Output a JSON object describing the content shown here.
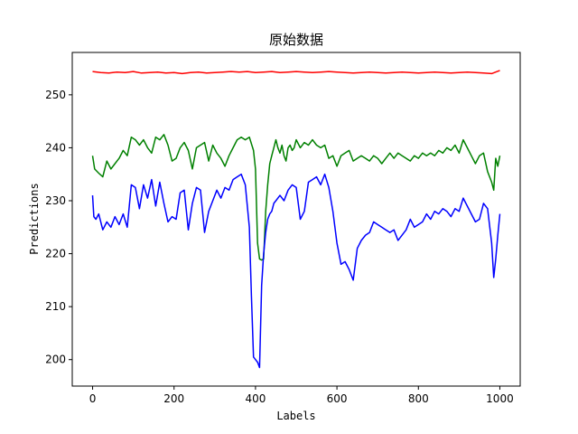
{
  "chart_data": {
    "type": "line",
    "title": "原始数据",
    "xlabel": "Labels",
    "ylabel": "Predictions",
    "xlim": [
      -50,
      1050
    ],
    "ylim": [
      195,
      258
    ],
    "x_ticks": [
      0,
      200,
      400,
      600,
      800,
      1000
    ],
    "y_ticks": [
      200,
      210,
      220,
      230,
      240,
      250
    ],
    "grid": false,
    "series": [
      {
        "color": "#ff0000",
        "x": [
          0,
          20,
          40,
          60,
          80,
          100,
          120,
          140,
          160,
          180,
          200,
          220,
          240,
          260,
          280,
          300,
          320,
          340,
          360,
          380,
          400,
          420,
          440,
          460,
          480,
          500,
          520,
          540,
          560,
          580,
          600,
          620,
          640,
          660,
          680,
          700,
          720,
          740,
          760,
          780,
          800,
          820,
          840,
          860,
          880,
          900,
          920,
          940,
          960,
          980,
          990,
          1000
        ],
        "values": [
          254.4,
          254.2,
          254.1,
          254.3,
          254.2,
          254.4,
          254.1,
          254.2,
          254.3,
          254.1,
          254.2,
          254.0,
          254.2,
          254.3,
          254.1,
          254.2,
          254.3,
          254.4,
          254.3,
          254.4,
          254.2,
          254.3,
          254.4,
          254.2,
          254.3,
          254.4,
          254.3,
          254.2,
          254.3,
          254.4,
          254.3,
          254.2,
          254.1,
          254.2,
          254.3,
          254.2,
          254.1,
          254.2,
          254.3,
          254.2,
          254.1,
          254.2,
          254.3,
          254.2,
          254.1,
          254.2,
          254.3,
          254.2,
          254.1,
          254.0,
          254.3,
          254.6
        ]
      },
      {
        "color": "#008000",
        "x": [
          0,
          5,
          15,
          25,
          35,
          45,
          55,
          65,
          75,
          85,
          95,
          105,
          115,
          125,
          135,
          145,
          155,
          165,
          175,
          185,
          195,
          205,
          215,
          225,
          235,
          245,
          255,
          265,
          275,
          285,
          295,
          305,
          315,
          325,
          335,
          345,
          355,
          365,
          375,
          385,
          395,
          400,
          405,
          410,
          415,
          420,
          425,
          430,
          435,
          440,
          445,
          450,
          455,
          460,
          465,
          470,
          475,
          480,
          485,
          490,
          495,
          500,
          510,
          520,
          530,
          540,
          550,
          560,
          570,
          580,
          590,
          600,
          610,
          620,
          630,
          640,
          650,
          660,
          670,
          680,
          690,
          700,
          710,
          720,
          730,
          740,
          750,
          760,
          770,
          780,
          790,
          800,
          810,
          820,
          830,
          840,
          850,
          860,
          870,
          880,
          890,
          900,
          910,
          920,
          930,
          940,
          950,
          960,
          970,
          980,
          985,
          990,
          995,
          1000
        ],
        "values": [
          238.5,
          236.0,
          235.2,
          234.5,
          237.5,
          236.0,
          237.0,
          238.0,
          239.5,
          238.5,
          242.0,
          241.5,
          240.5,
          241.5,
          240.0,
          239.0,
          242.0,
          241.5,
          242.5,
          240.5,
          237.5,
          238.0,
          240.0,
          241.0,
          239.5,
          236.0,
          240.0,
          240.5,
          241.0,
          237.5,
          240.5,
          239.0,
          238.0,
          236.5,
          238.5,
          240.0,
          241.5,
          242.0,
          241.5,
          242.0,
          239.5,
          236.0,
          222.0,
          219.0,
          218.8,
          219.0,
          228.0,
          233.0,
          237.0,
          238.5,
          240.0,
          241.5,
          240.0,
          239.0,
          240.5,
          238.5,
          237.5,
          240.0,
          240.5,
          239.5,
          240.0,
          241.5,
          240.0,
          241.0,
          240.5,
          241.5,
          240.5,
          240.0,
          240.5,
          238.0,
          238.5,
          236.5,
          238.5,
          239.0,
          239.5,
          237.5,
          238.0,
          238.5,
          238.0,
          237.5,
          238.5,
          238.0,
          237.0,
          238.0,
          239.0,
          238.0,
          239.0,
          238.5,
          238.0,
          237.5,
          238.5,
          238.0,
          239.0,
          238.5,
          239.0,
          238.5,
          239.5,
          239.0,
          240.0,
          239.5,
          240.5,
          239.0,
          241.5,
          240.0,
          238.5,
          237.0,
          238.5,
          239.0,
          235.5,
          233.5,
          232.0,
          238.0,
          236.5,
          238.5
        ]
      },
      {
        "color": "#0000ff",
        "x": [
          0,
          3,
          8,
          15,
          25,
          35,
          45,
          55,
          65,
          75,
          85,
          95,
          105,
          115,
          125,
          135,
          145,
          155,
          165,
          175,
          185,
          195,
          205,
          215,
          225,
          235,
          245,
          255,
          265,
          275,
          285,
          295,
          305,
          315,
          325,
          335,
          345,
          355,
          365,
          375,
          385,
          390,
          395,
          400,
          405,
          410,
          415,
          420,
          425,
          430,
          435,
          440,
          445,
          450,
          460,
          470,
          480,
          490,
          500,
          510,
          520,
          530,
          540,
          550,
          560,
          570,
          580,
          590,
          600,
          610,
          620,
          630,
          640,
          650,
          660,
          670,
          680,
          690,
          700,
          710,
          720,
          730,
          740,
          750,
          760,
          770,
          780,
          790,
          800,
          810,
          820,
          830,
          840,
          850,
          860,
          870,
          880,
          890,
          900,
          910,
          920,
          930,
          940,
          950,
          960,
          970,
          980,
          985,
          990,
          995,
          1000
        ],
        "values": [
          231.0,
          227.0,
          226.5,
          227.5,
          224.5,
          226.0,
          225.0,
          227.0,
          225.5,
          227.5,
          225.0,
          233.0,
          232.5,
          228.5,
          233.0,
          230.5,
          234.0,
          229.0,
          233.5,
          229.5,
          226.0,
          227.0,
          226.5,
          231.5,
          232.0,
          224.5,
          229.5,
          232.5,
          232.0,
          224.0,
          228.0,
          230.0,
          232.0,
          230.5,
          232.5,
          232.0,
          234.0,
          234.5,
          235.0,
          233.0,
          225.0,
          212.0,
          200.5,
          200.0,
          199.5,
          198.5,
          214.0,
          220.0,
          224.0,
          226.5,
          227.5,
          228.0,
          229.5,
          230.0,
          231.0,
          230.0,
          232.0,
          233.0,
          232.5,
          226.5,
          228.0,
          233.5,
          234.0,
          234.5,
          233.0,
          235.0,
          232.5,
          228.0,
          222.0,
          218.0,
          218.5,
          217.0,
          215.0,
          221.0,
          222.5,
          223.5,
          224.0,
          226.0,
          225.5,
          225.0,
          224.5,
          224.0,
          224.5,
          222.5,
          223.5,
          224.5,
          226.5,
          225.0,
          225.5,
          226.0,
          227.5,
          226.5,
          228.0,
          227.5,
          228.5,
          228.0,
          227.0,
          228.5,
          228.0,
          230.5,
          229.0,
          227.5,
          226.0,
          226.5,
          229.5,
          228.5,
          222.0,
          215.5,
          219.0,
          223.5,
          227.5
        ]
      }
    ]
  }
}
